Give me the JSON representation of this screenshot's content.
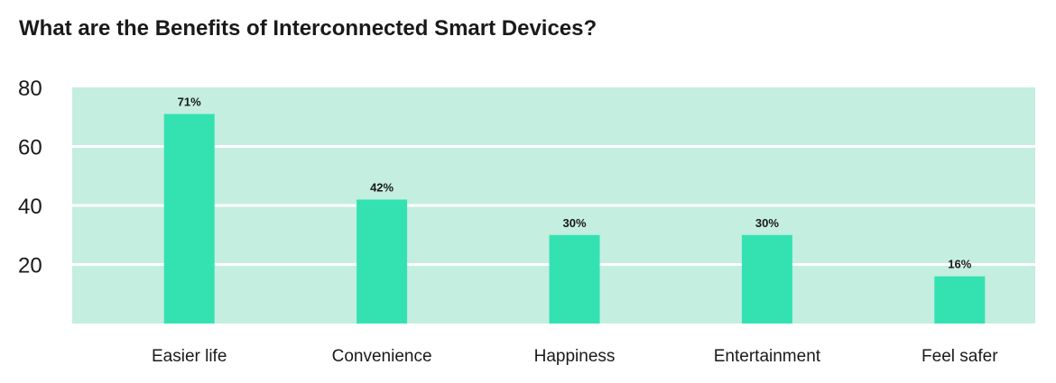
{
  "chart_data": {
    "type": "bar",
    "title": "What are the Benefits of Interconnected Smart Devices?",
    "xlabel": "",
    "ylabel": "",
    "categories": [
      "Easier life",
      "Convenience",
      "Happiness",
      "Entertainment",
      "Feel safer"
    ],
    "values": [
      71,
      42,
      30,
      30,
      16
    ],
    "data_labels": [
      "71%",
      "42%",
      "30%",
      "30%",
      "16%"
    ],
    "ylim": [
      0,
      80
    ],
    "yticks": [
      20,
      40,
      60,
      80
    ],
    "grid": true,
    "legend": "none",
    "colors": {
      "bar": "#34e2b1",
      "plot_background": "#c4eee0",
      "gridline": "#ffffff",
      "text": "#1a1a1a"
    }
  }
}
